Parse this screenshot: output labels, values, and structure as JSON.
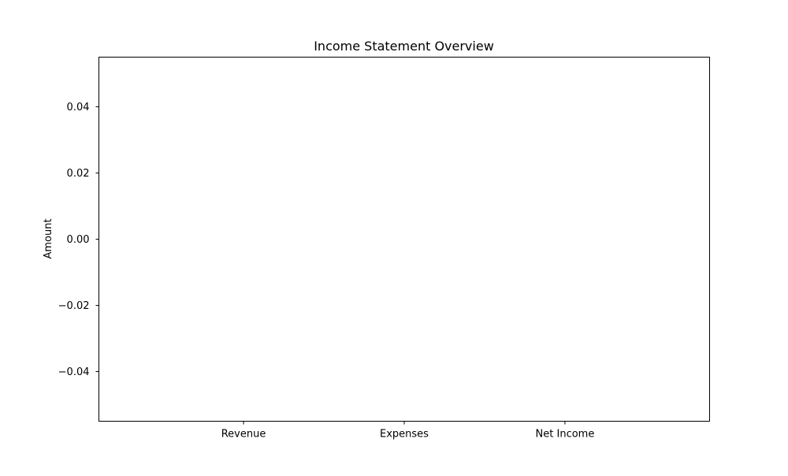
{
  "chart_data": {
    "type": "bar",
    "title": "Income Statement Overview",
    "xlabel": "",
    "ylabel": "Amount",
    "categories": [
      "Revenue",
      "Expenses",
      "Net Income"
    ],
    "values": [
      0,
      0,
      0
    ],
    "ylim": [
      -0.055,
      0.055
    ],
    "yticks": [
      0.04,
      0.02,
      0.0,
      -0.02,
      -0.04
    ],
    "ytick_labels": [
      "0.04",
      "0.02",
      "0.00",
      "−0.02",
      "−0.04"
    ],
    "grid": false,
    "legend": null
  }
}
